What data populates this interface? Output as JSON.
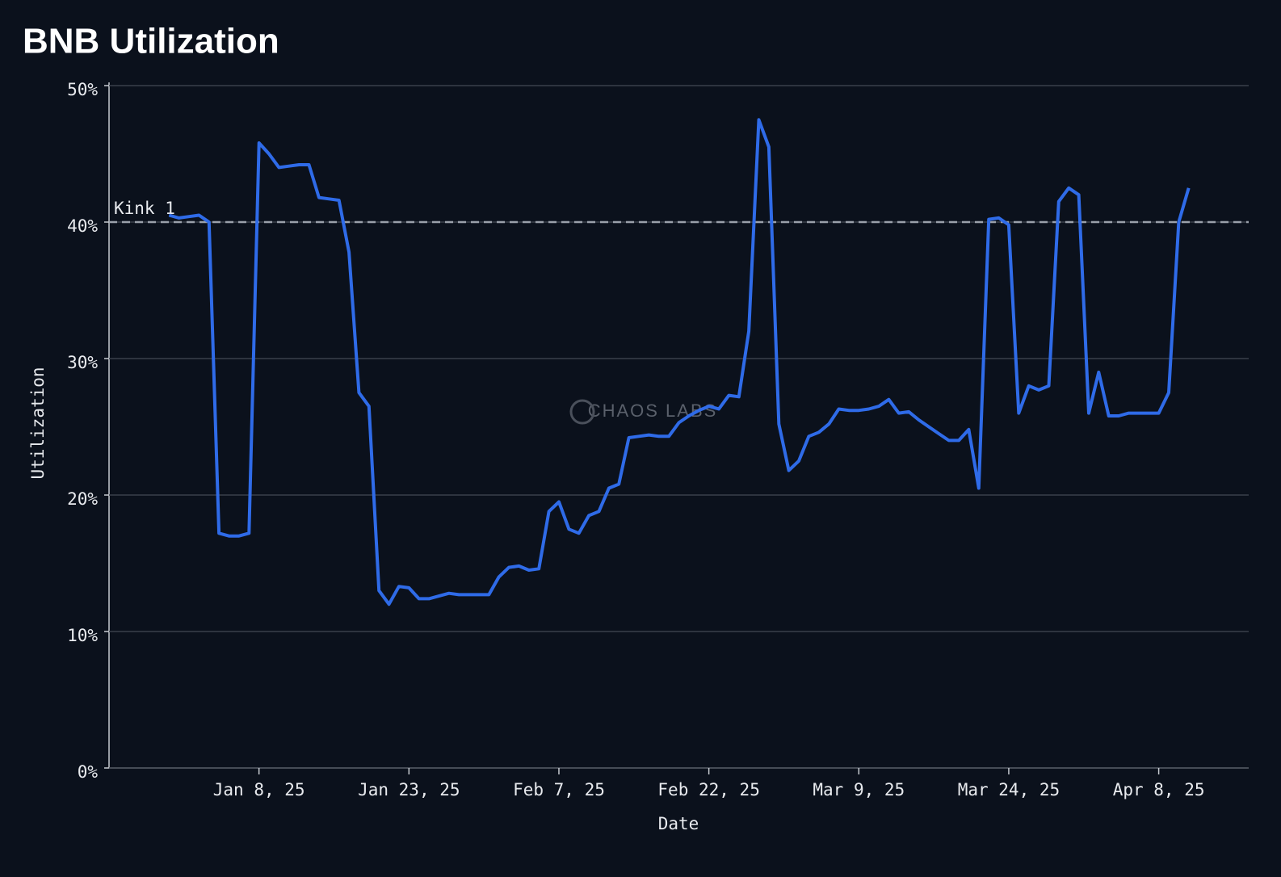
{
  "chart_data": {
    "type": "line",
    "title": "BNB Utilization",
    "x_label": "Date",
    "y_label": "Utilization",
    "watermark": "CHAOS LABS",
    "grid": true,
    "xlim": [
      "2024-12-24",
      "2025-04-17"
    ],
    "xticks": [
      {
        "value": "2025-01-08",
        "label": "Jan 8, 25"
      },
      {
        "value": "2025-01-23",
        "label": "Jan 23, 25"
      },
      {
        "value": "2025-02-07",
        "label": "Feb 7, 25"
      },
      {
        "value": "2025-02-22",
        "label": "Feb 22, 25"
      },
      {
        "value": "2025-03-09",
        "label": "Mar 9, 25"
      },
      {
        "value": "2025-03-24",
        "label": "Mar 24, 25"
      },
      {
        "value": "2025-04-08",
        "label": "Apr 8, 25"
      }
    ],
    "ylim": [
      0,
      50
    ],
    "yticks": [
      {
        "value": 0,
        "label": "0%"
      },
      {
        "value": 10,
        "label": "10%"
      },
      {
        "value": 20,
        "label": "20%"
      },
      {
        "value": 30,
        "label": "30%"
      },
      {
        "value": 40,
        "label": "40%"
      },
      {
        "value": 50,
        "label": "50%"
      }
    ],
    "reference_lines": [
      {
        "value": 40,
        "label": "Kink 1",
        "color": "#9aa0aa"
      }
    ],
    "x": [
      "2024-12-30",
      "2024-12-31",
      "2025-01-01",
      "2025-01-02",
      "2025-01-03",
      "2025-01-04",
      "2025-01-05",
      "2025-01-06",
      "2025-01-07",
      "2025-01-08",
      "2025-01-09",
      "2025-01-10",
      "2025-01-11",
      "2025-01-12",
      "2025-01-13",
      "2025-01-14",
      "2025-01-15",
      "2025-01-16",
      "2025-01-17",
      "2025-01-18",
      "2025-01-19",
      "2025-01-20",
      "2025-01-21",
      "2025-01-22",
      "2025-01-23",
      "2025-01-24",
      "2025-01-25",
      "2025-01-26",
      "2025-01-27",
      "2025-01-28",
      "2025-01-29",
      "2025-01-30",
      "2025-01-31",
      "2025-02-01",
      "2025-02-02",
      "2025-02-03",
      "2025-02-04",
      "2025-02-05",
      "2025-02-06",
      "2025-02-07",
      "2025-02-08",
      "2025-02-09",
      "2025-02-10",
      "2025-02-11",
      "2025-02-12",
      "2025-02-13",
      "2025-02-14",
      "2025-02-15",
      "2025-02-16",
      "2025-02-17",
      "2025-02-18",
      "2025-02-19",
      "2025-02-20",
      "2025-02-21",
      "2025-02-22",
      "2025-02-23",
      "2025-02-24",
      "2025-02-25",
      "2025-02-26",
      "2025-02-27",
      "2025-02-28",
      "2025-03-01",
      "2025-03-02",
      "2025-03-03",
      "2025-03-04",
      "2025-03-05",
      "2025-03-06",
      "2025-03-07",
      "2025-03-08",
      "2025-03-09",
      "2025-03-10",
      "2025-03-11",
      "2025-03-12",
      "2025-03-13",
      "2025-03-14",
      "2025-03-15",
      "2025-03-16",
      "2025-03-17",
      "2025-03-18",
      "2025-03-19",
      "2025-03-20",
      "2025-03-21",
      "2025-03-22",
      "2025-03-23",
      "2025-03-24",
      "2025-03-25",
      "2025-03-26",
      "2025-03-27",
      "2025-03-28",
      "2025-03-29",
      "2025-03-30",
      "2025-03-31",
      "2025-04-01",
      "2025-04-02",
      "2025-04-03",
      "2025-04-04",
      "2025-04-05",
      "2025-04-06",
      "2025-04-07",
      "2025-04-08",
      "2025-04-09",
      "2025-04-10",
      "2025-04-11"
    ],
    "series": [
      {
        "name": "Utilization",
        "color": "#2f6be8",
        "values": [
          40.5,
          40.3,
          40.4,
          40.5,
          40,
          17.2,
          17,
          17,
          17.2,
          45.8,
          45,
          44,
          44.1,
          44.2,
          44.2,
          41.8,
          41.7,
          41.6,
          37.8,
          27.5,
          26.5,
          13,
          12,
          13.3,
          13.2,
          12.4,
          12.4,
          12.6,
          12.8,
          12.7,
          12.7,
          12.7,
          12.7,
          14,
          14.7,
          14.8,
          14.5,
          14.6,
          18.8,
          19.5,
          17.5,
          17.2,
          18.5,
          18.8,
          20.5,
          20.8,
          24.2,
          24.3,
          24.4,
          24.3,
          24.3,
          25.3,
          25.8,
          26.2,
          26.5,
          26.3,
          27.3,
          27.2,
          32,
          47.5,
          45.5,
          25.2,
          21.8,
          22.5,
          24.3,
          24.6,
          25.2,
          26.3,
          26.2,
          26.2,
          26.3,
          26.5,
          27,
          26,
          26.1,
          25.5,
          25,
          24.5,
          24,
          24,
          24.8,
          20.5,
          40.2,
          40.3,
          39.8,
          26,
          28,
          27.7,
          28,
          41.5,
          42.5,
          42,
          26,
          29,
          25.8,
          25.8,
          26,
          26,
          26,
          26,
          27.5,
          40,
          42.5
        ]
      }
    ]
  }
}
